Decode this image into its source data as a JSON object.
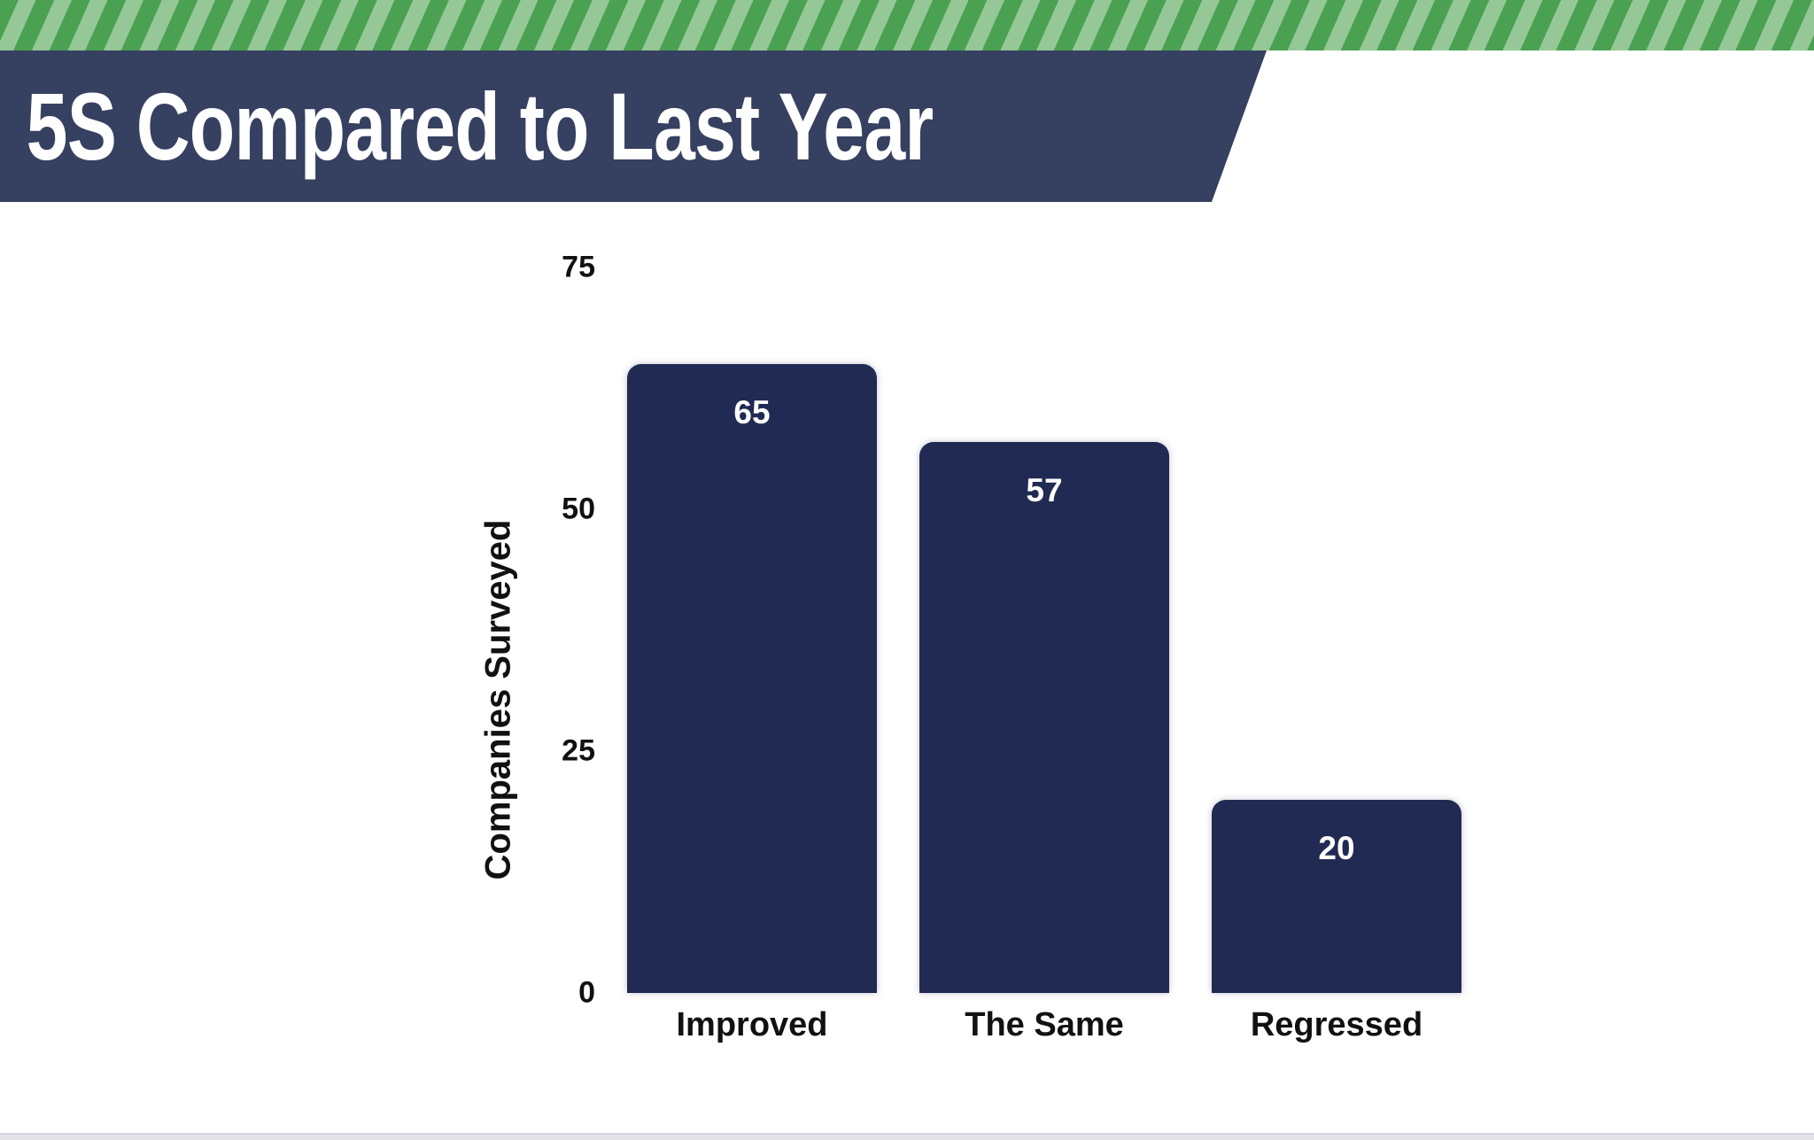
{
  "chart_data": {
    "type": "bar",
    "title": "5S Compared to Last Year",
    "categories": [
      "Improved",
      "The Same",
      "Regressed"
    ],
    "values": [
      65,
      57,
      20
    ],
    "xlabel": "",
    "ylabel": "Companies Surveyed",
    "ylim": [
      0,
      75
    ],
    "yticks": [
      0,
      25,
      50,
      75
    ],
    "grid": false,
    "legend": false,
    "bar_value_labels_shown": true
  },
  "colors": {
    "stripe_dark": "#4aa152",
    "stripe_light": "#96c897",
    "banner_bg": "#364060",
    "title_text": "#ffffff",
    "bar_color": "#212a52",
    "bar_value_text": "#ffffff",
    "axis_text": "#111111",
    "background": "#ffffff",
    "bottom_strip": "#e3e3e8"
  }
}
